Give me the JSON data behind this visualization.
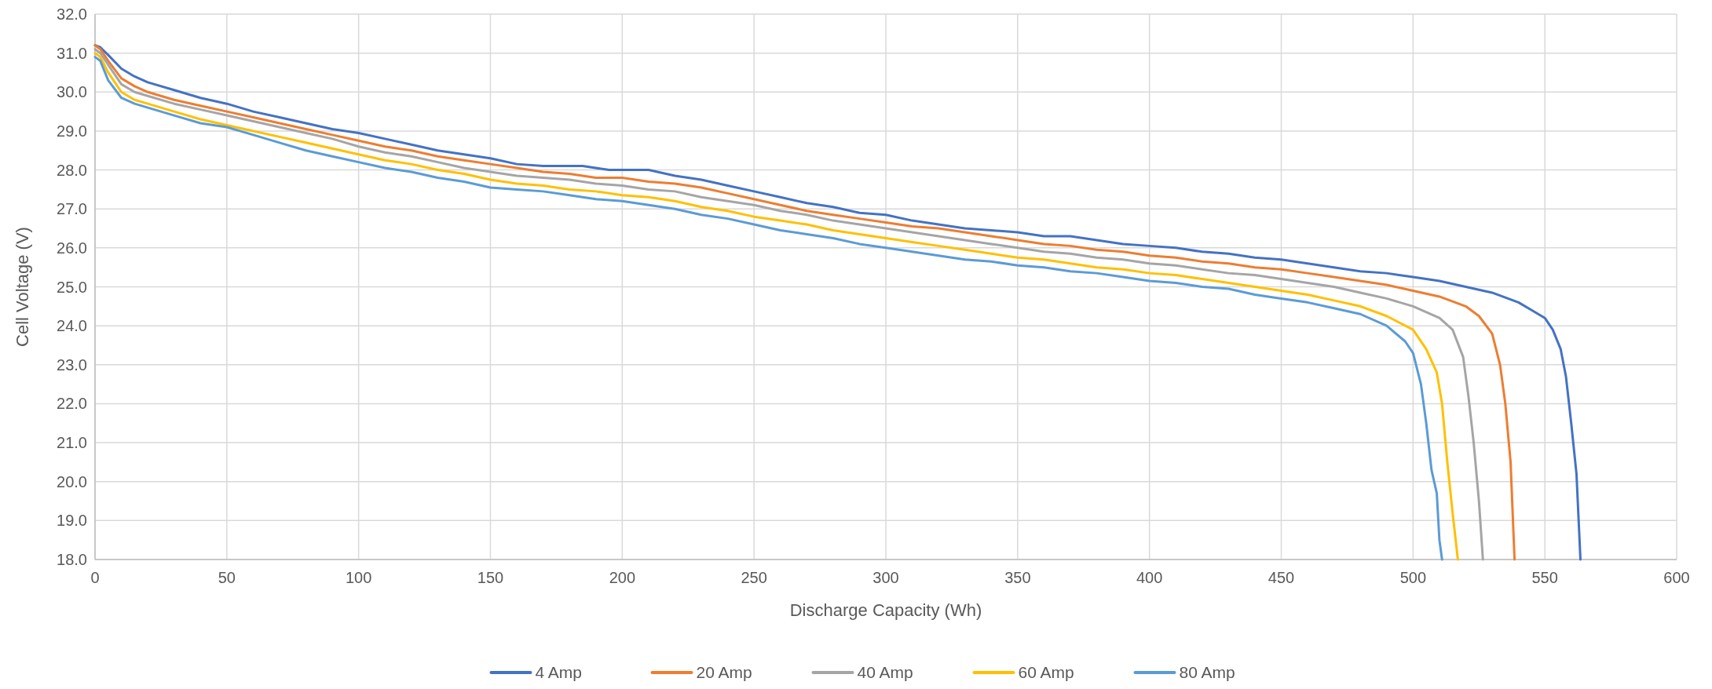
{
  "chart_data": {
    "type": "line",
    "xlabel": "Discharge Capacity (Wh)",
    "ylabel": "Cell Voltage (V)",
    "xlim": [
      0,
      600
    ],
    "xticks": [
      0,
      50,
      100,
      150,
      200,
      250,
      300,
      350,
      400,
      450,
      500,
      550,
      600
    ],
    "ylim": [
      18,
      32
    ],
    "yticks": [
      {
        "value": 18,
        "label": "18.0"
      },
      {
        "value": 19,
        "label": "19.0"
      },
      {
        "value": 20,
        "label": "20.0"
      },
      {
        "value": 21,
        "label": "21.0"
      },
      {
        "value": 22,
        "label": "22.0"
      },
      {
        "value": 23,
        "label": "23.0"
      },
      {
        "value": 24,
        "label": "24.0"
      },
      {
        "value": 25,
        "label": "25.0"
      },
      {
        "value": 26,
        "label": "26.0"
      },
      {
        "value": 27,
        "label": "27.0"
      },
      {
        "value": 28,
        "label": "28.0"
      },
      {
        "value": 29,
        "label": "29.0"
      },
      {
        "value": 30,
        "label": "30.0"
      },
      {
        "value": 31,
        "label": "31.0"
      },
      {
        "value": 32,
        "label": "32.0"
      }
    ],
    "grid": true,
    "legend": "bottom",
    "marker": "none",
    "line_style": "solid",
    "series": [
      {
        "name": "4 Amp",
        "color": "#4472c4",
        "x": [
          0,
          2,
          5,
          10,
          15,
          20,
          30,
          40,
          50,
          60,
          70,
          80,
          90,
          100,
          110,
          120,
          130,
          140,
          150,
          160,
          170,
          185,
          195,
          210,
          220,
          230,
          240,
          250,
          260,
          270,
          280,
          290,
          300,
          310,
          320,
          330,
          340,
          350,
          360,
          370,
          380,
          390,
          400,
          410,
          420,
          430,
          440,
          450,
          460,
          470,
          480,
          490,
          500,
          510,
          520,
          530,
          540,
          545,
          550,
          553,
          556,
          558,
          560,
          562,
          563.5
        ],
        "values": [
          31.2,
          31.15,
          30.95,
          30.6,
          30.4,
          30.25,
          30.05,
          29.85,
          29.7,
          29.5,
          29.35,
          29.2,
          29.05,
          28.95,
          28.8,
          28.65,
          28.5,
          28.4,
          28.3,
          28.15,
          28.1,
          28.1,
          28.0,
          28.0,
          27.85,
          27.75,
          27.6,
          27.45,
          27.3,
          27.15,
          27.05,
          26.9,
          26.85,
          26.7,
          26.6,
          26.5,
          26.45,
          26.4,
          26.3,
          26.3,
          26.2,
          26.1,
          26.05,
          26.0,
          25.9,
          25.85,
          25.75,
          25.7,
          25.6,
          25.5,
          25.4,
          25.35,
          25.25,
          25.15,
          25.0,
          24.85,
          24.6,
          24.4,
          24.2,
          23.9,
          23.4,
          22.7,
          21.5,
          20.2,
          18.0
        ]
      },
      {
        "name": "20 Amp",
        "color": "#ed7d31",
        "x": [
          0,
          2,
          5,
          10,
          15,
          20,
          30,
          40,
          50,
          60,
          70,
          80,
          90,
          100,
          110,
          120,
          130,
          140,
          150,
          160,
          170,
          180,
          190,
          200,
          210,
          220,
          230,
          240,
          250,
          260,
          270,
          280,
          290,
          300,
          310,
          320,
          330,
          340,
          350,
          360,
          370,
          380,
          390,
          400,
          410,
          420,
          430,
          440,
          450,
          460,
          470,
          480,
          490,
          500,
          510,
          520,
          525,
          530,
          533,
          535,
          537,
          538.5
        ],
        "values": [
          31.2,
          31.1,
          30.8,
          30.35,
          30.15,
          30.0,
          29.8,
          29.65,
          29.5,
          29.35,
          29.2,
          29.05,
          28.9,
          28.75,
          28.6,
          28.5,
          28.35,
          28.25,
          28.15,
          28.05,
          27.95,
          27.9,
          27.8,
          27.8,
          27.7,
          27.65,
          27.55,
          27.4,
          27.25,
          27.1,
          26.95,
          26.85,
          26.75,
          26.65,
          26.55,
          26.5,
          26.4,
          26.3,
          26.2,
          26.1,
          26.05,
          25.95,
          25.9,
          25.8,
          25.75,
          25.65,
          25.6,
          25.5,
          25.45,
          25.35,
          25.25,
          25.15,
          25.05,
          24.9,
          24.75,
          24.5,
          24.25,
          23.8,
          23.0,
          22.0,
          20.5,
          18.0
        ]
      },
      {
        "name": "40 Amp",
        "color": "#a5a5a5",
        "x": [
          0,
          2,
          5,
          10,
          15,
          20,
          30,
          40,
          50,
          60,
          70,
          80,
          90,
          100,
          110,
          120,
          130,
          140,
          150,
          160,
          170,
          180,
          190,
          200,
          210,
          220,
          230,
          240,
          250,
          260,
          270,
          280,
          290,
          300,
          310,
          320,
          330,
          340,
          350,
          360,
          370,
          380,
          390,
          400,
          410,
          420,
          430,
          440,
          450,
          460,
          470,
          480,
          490,
          500,
          510,
          515,
          519,
          521,
          523,
          525,
          526.5
        ],
        "values": [
          31.1,
          31.0,
          30.7,
          30.2,
          30.0,
          29.9,
          29.7,
          29.55,
          29.4,
          29.25,
          29.1,
          28.95,
          28.8,
          28.6,
          28.45,
          28.35,
          28.2,
          28.05,
          27.95,
          27.85,
          27.8,
          27.75,
          27.65,
          27.6,
          27.5,
          27.45,
          27.3,
          27.2,
          27.1,
          26.95,
          26.85,
          26.7,
          26.6,
          26.5,
          26.4,
          26.3,
          26.2,
          26.1,
          26.0,
          25.9,
          25.85,
          25.75,
          25.7,
          25.6,
          25.55,
          25.45,
          25.35,
          25.3,
          25.2,
          25.1,
          25.0,
          24.85,
          24.7,
          24.5,
          24.2,
          23.9,
          23.2,
          22.2,
          21.0,
          19.5,
          18.0
        ]
      },
      {
        "name": "60 Amp",
        "color": "#ffc000",
        "x": [
          0,
          2,
          5,
          10,
          15,
          20,
          30,
          40,
          50,
          60,
          70,
          80,
          90,
          100,
          110,
          120,
          130,
          140,
          150,
          160,
          170,
          180,
          190,
          200,
          210,
          220,
          230,
          240,
          250,
          260,
          270,
          280,
          290,
          300,
          310,
          320,
          330,
          340,
          350,
          360,
          370,
          380,
          390,
          400,
          410,
          420,
          430,
          440,
          450,
          460,
          470,
          480,
          490,
          500,
          505,
          509,
          511,
          513,
          515,
          517
        ],
        "values": [
          31.0,
          30.9,
          30.5,
          30.0,
          29.8,
          29.7,
          29.5,
          29.3,
          29.15,
          29.0,
          28.85,
          28.7,
          28.55,
          28.4,
          28.25,
          28.15,
          28.0,
          27.9,
          27.75,
          27.65,
          27.6,
          27.5,
          27.45,
          27.35,
          27.3,
          27.2,
          27.05,
          26.95,
          26.8,
          26.7,
          26.6,
          26.45,
          26.35,
          26.25,
          26.15,
          26.05,
          25.95,
          25.85,
          25.75,
          25.7,
          25.6,
          25.5,
          25.45,
          25.35,
          25.3,
          25.2,
          25.1,
          25.0,
          24.9,
          24.8,
          24.65,
          24.5,
          24.25,
          23.9,
          23.4,
          22.8,
          22.0,
          20.5,
          19.2,
          18.0
        ]
      },
      {
        "name": "80 Amp",
        "color": "#5b9bd5",
        "x": [
          0,
          2,
          5,
          10,
          15,
          20,
          30,
          40,
          50,
          60,
          70,
          80,
          90,
          100,
          110,
          120,
          130,
          140,
          150,
          160,
          170,
          180,
          190,
          200,
          210,
          220,
          230,
          240,
          250,
          260,
          270,
          280,
          290,
          300,
          310,
          320,
          330,
          340,
          350,
          360,
          370,
          380,
          390,
          400,
          410,
          420,
          430,
          440,
          450,
          460,
          470,
          480,
          490,
          497,
          500,
          503,
          505,
          507,
          509,
          510,
          511
        ],
        "values": [
          30.9,
          30.8,
          30.3,
          29.85,
          29.7,
          29.6,
          29.4,
          29.2,
          29.1,
          28.9,
          28.7,
          28.5,
          28.35,
          28.2,
          28.05,
          27.95,
          27.8,
          27.7,
          27.55,
          27.5,
          27.45,
          27.35,
          27.25,
          27.2,
          27.1,
          27.0,
          26.85,
          26.75,
          26.6,
          26.45,
          26.35,
          26.25,
          26.1,
          26.0,
          25.9,
          25.8,
          25.7,
          25.65,
          25.55,
          25.5,
          25.4,
          25.35,
          25.25,
          25.15,
          25.1,
          25.0,
          24.95,
          24.8,
          24.7,
          24.6,
          24.45,
          24.3,
          24.0,
          23.6,
          23.3,
          22.5,
          21.5,
          20.3,
          19.7,
          18.5,
          18.0
        ]
      }
    ]
  }
}
